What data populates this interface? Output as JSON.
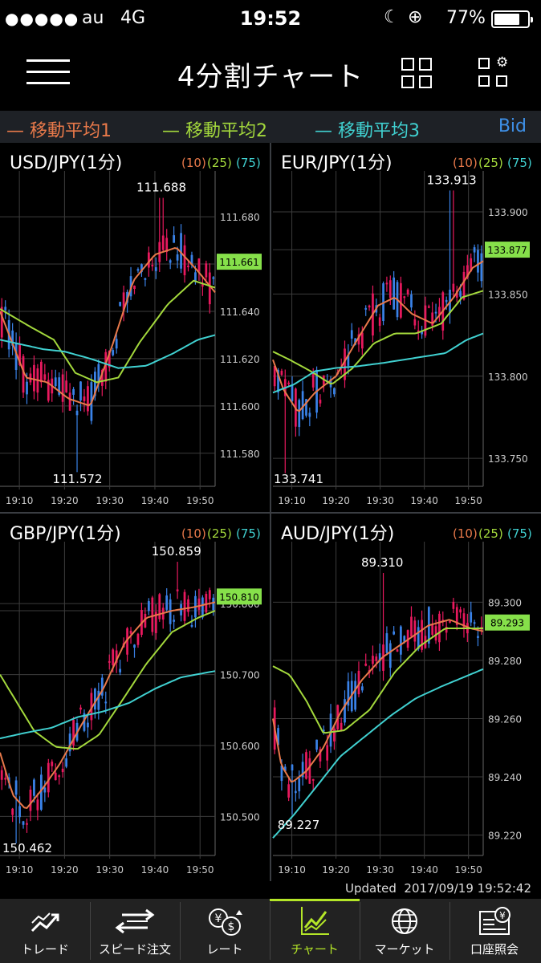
{
  "status": {
    "signal": "●●●●●",
    "carrier": "au",
    "network": "4G",
    "time": "19:52",
    "battery_text": "77%",
    "battery_level": 0.77
  },
  "header": {
    "title": "4分割チャート"
  },
  "legend": {
    "ma1": "移動平均1",
    "ma2": "移動平均2",
    "ma3": "移動平均3",
    "price_type": "Bid"
  },
  "colors": {
    "ma1": "#e8794a",
    "ma2": "#a3d83c",
    "ma3": "#40d0d0",
    "candle_up": "#e8195e",
    "candle_down": "#3a82e8",
    "price_tag": "#86e04a",
    "accent": "#b4e628",
    "bid": "#3e8fe6"
  },
  "chart_data": [
    {
      "type": "candlestick",
      "title": "USD/JPY(1分)",
      "ma_periods": [
        "(10)",
        "(25)",
        "(75)"
      ],
      "x_ticks": [
        "19:10",
        "19:20",
        "19:30",
        "19:40",
        "19:50"
      ],
      "y_ticks": [
        "111.580",
        "111.600",
        "111.620",
        "111.640",
        "111.680"
      ],
      "ylim": [
        111.566,
        111.696
      ],
      "high_label": "111.688",
      "low_label": "111.572",
      "last_price": "111.661",
      "last_value": 111.661,
      "high": 111.688,
      "low": 111.572,
      "high_at": 0.75,
      "low_at": 0.36,
      "extra_grid": [
        111.66
      ],
      "ma1": [
        [
          0,
          111.64
        ],
        [
          0.12,
          111.612
        ],
        [
          0.22,
          111.61
        ],
        [
          0.32,
          111.603
        ],
        [
          0.42,
          111.6
        ],
        [
          0.52,
          111.625
        ],
        [
          0.62,
          111.653
        ],
        [
          0.72,
          111.664
        ],
        [
          0.82,
          111.667
        ],
        [
          0.92,
          111.657
        ],
        [
          1,
          111.648
        ]
      ],
      "ma2": [
        [
          0,
          111.641
        ],
        [
          0.15,
          111.633
        ],
        [
          0.25,
          111.628
        ],
        [
          0.35,
          111.614
        ],
        [
          0.45,
          111.61
        ],
        [
          0.55,
          111.612
        ],
        [
          0.65,
          111.627
        ],
        [
          0.78,
          111.643
        ],
        [
          0.9,
          111.653
        ],
        [
          1,
          111.65
        ]
      ],
      "ma3": [
        [
          0,
          111.628
        ],
        [
          0.2,
          111.624
        ],
        [
          0.3,
          111.623
        ],
        [
          0.42,
          111.62
        ],
        [
          0.55,
          111.616
        ],
        [
          0.68,
          111.617
        ],
        [
          0.8,
          111.622
        ],
        [
          0.92,
          111.628
        ],
        [
          1,
          111.63
        ]
      ]
    },
    {
      "type": "candlestick",
      "title": "EUR/JPY(1分)",
      "ma_periods": [
        "(10)",
        "(25)",
        "(75)"
      ],
      "x_ticks": [
        "19:10",
        "19:20",
        "19:30",
        "19:40",
        "19:50"
      ],
      "y_ticks": [
        "133.750",
        "133.800",
        "133.850",
        "133.900"
      ],
      "ylim": [
        133.733,
        133.92
      ],
      "high_label": "133.913",
      "low_label": "133.741",
      "last_price": "133.877",
      "last_value": 133.877,
      "high": 133.913,
      "low": 133.741,
      "high_at": 0.85,
      "low_at": 0.06,
      "extra_grid": [
        133.877
      ],
      "ma1": [
        [
          0,
          133.81
        ],
        [
          0.05,
          133.792
        ],
        [
          0.12,
          133.778
        ],
        [
          0.2,
          133.79
        ],
        [
          0.3,
          133.8
        ],
        [
          0.4,
          133.822
        ],
        [
          0.5,
          133.843
        ],
        [
          0.58,
          133.848
        ],
        [
          0.66,
          133.838
        ],
        [
          0.76,
          133.832
        ],
        [
          0.86,
          133.848
        ],
        [
          0.95,
          133.866
        ],
        [
          1,
          133.87
        ]
      ],
      "ma2": [
        [
          0,
          133.815
        ],
        [
          0.08,
          133.81
        ],
        [
          0.18,
          133.803
        ],
        [
          0.28,
          133.795
        ],
        [
          0.38,
          133.805
        ],
        [
          0.48,
          133.82
        ],
        [
          0.58,
          133.826
        ],
        [
          0.68,
          133.826
        ],
        [
          0.8,
          133.832
        ],
        [
          0.9,
          133.848
        ],
        [
          1,
          133.852
        ]
      ],
      "ma3": [
        [
          0,
          133.79
        ],
        [
          0.1,
          133.795
        ],
        [
          0.2,
          133.803
        ],
        [
          0.3,
          133.805
        ],
        [
          0.4,
          133.806
        ],
        [
          0.52,
          133.808
        ],
        [
          0.62,
          133.81
        ],
        [
          0.72,
          133.812
        ],
        [
          0.82,
          133.814
        ],
        [
          0.92,
          133.822
        ],
        [
          1,
          133.826
        ]
      ]
    },
    {
      "type": "candlestick",
      "title": "GBP/JPY(1分)",
      "ma_periods": [
        "(10)",
        "(25)",
        "(75)"
      ],
      "x_ticks": [
        "19:10",
        "19:20",
        "19:30",
        "19:40",
        "19:50"
      ],
      "y_ticks": [
        "150.500",
        "150.600",
        "150.700",
        "150.800"
      ],
      "ylim": [
        150.445,
        150.876
      ],
      "high_label": "150.859",
      "low_label": "150.462",
      "last_price": "150.810",
      "last_value": 150.81,
      "high": 150.859,
      "low": 150.462,
      "high_at": 0.82,
      "low_at": 0.07,
      "extra_grid": [
        150.79
      ],
      "ma1": [
        [
          0,
          150.59
        ],
        [
          0.06,
          150.53
        ],
        [
          0.12,
          150.51
        ],
        [
          0.2,
          150.54
        ],
        [
          0.28,
          150.575
        ],
        [
          0.38,
          150.63
        ],
        [
          0.48,
          150.68
        ],
        [
          0.58,
          150.745
        ],
        [
          0.68,
          150.78
        ],
        [
          0.8,
          150.79
        ],
        [
          0.9,
          150.795
        ],
        [
          1,
          150.802
        ]
      ],
      "ma2": [
        [
          0,
          150.7
        ],
        [
          0.08,
          150.66
        ],
        [
          0.16,
          150.62
        ],
        [
          0.26,
          150.598
        ],
        [
          0.36,
          150.595
        ],
        [
          0.46,
          150.615
        ],
        [
          0.56,
          150.66
        ],
        [
          0.68,
          150.715
        ],
        [
          0.8,
          150.76
        ],
        [
          0.92,
          150.78
        ],
        [
          1,
          150.79
        ]
      ],
      "ma3": [
        [
          0,
          150.61
        ],
        [
          0.12,
          150.618
        ],
        [
          0.24,
          150.625
        ],
        [
          0.36,
          150.64
        ],
        [
          0.48,
          150.648
        ],
        [
          0.6,
          150.66
        ],
        [
          0.72,
          150.68
        ],
        [
          0.84,
          150.696
        ],
        [
          1,
          150.705
        ]
      ]
    },
    {
      "type": "candlestick",
      "title": "AUD/JPY(1分)",
      "ma_periods": [
        "(10)",
        "(25)",
        "(75)"
      ],
      "x_ticks": [
        "19:10",
        "19:20",
        "19:30",
        "19:40",
        "19:50"
      ],
      "y_ticks": [
        "89.220",
        "89.240",
        "89.260",
        "89.280",
        "89.300"
      ],
      "ylim": [
        89.213,
        89.318
      ],
      "high_label": "89.310",
      "low_label": "89.227",
      "last_price": "89.293",
      "last_value": 89.293,
      "high": 89.31,
      "low": 89.227,
      "high_at": 0.52,
      "low_at": 0.09,
      "extra_grid": [],
      "ma1": [
        [
          0,
          89.26
        ],
        [
          0.04,
          89.244
        ],
        [
          0.09,
          89.238
        ],
        [
          0.16,
          89.242
        ],
        [
          0.24,
          89.25
        ],
        [
          0.32,
          89.262
        ],
        [
          0.42,
          89.273
        ],
        [
          0.52,
          89.281
        ],
        [
          0.62,
          89.286
        ],
        [
          0.74,
          89.292
        ],
        [
          0.84,
          89.294
        ],
        [
          0.94,
          89.291
        ],
        [
          1,
          89.29
        ]
      ],
      "ma2": [
        [
          0,
          89.278
        ],
        [
          0.08,
          89.275
        ],
        [
          0.16,
          89.266
        ],
        [
          0.24,
          89.255
        ],
        [
          0.34,
          89.256
        ],
        [
          0.46,
          89.263
        ],
        [
          0.58,
          89.276
        ],
        [
          0.7,
          89.285
        ],
        [
          0.82,
          89.291
        ],
        [
          0.92,
          89.291
        ],
        [
          1,
          89.291
        ]
      ],
      "ma3": [
        [
          0,
          89.219
        ],
        [
          0.1,
          89.227
        ],
        [
          0.2,
          89.236
        ],
        [
          0.32,
          89.247
        ],
        [
          0.44,
          89.254
        ],
        [
          0.56,
          89.261
        ],
        [
          0.68,
          89.267
        ],
        [
          0.8,
          89.271
        ],
        [
          0.9,
          89.274
        ],
        [
          1,
          89.277
        ]
      ]
    }
  ],
  "updated": {
    "label": "Updated",
    "datetime": "2017/09/19 19:52:42"
  },
  "tabs": [
    {
      "label": "トレード",
      "icon": "trade-icon"
    },
    {
      "label": "スピード注文",
      "icon": "speed-order-icon"
    },
    {
      "label": "レート",
      "icon": "rate-icon"
    },
    {
      "label": "チャート",
      "icon": "chart-icon",
      "active": true
    },
    {
      "label": "マーケット",
      "icon": "market-icon"
    },
    {
      "label": "口座照会",
      "icon": "account-icon"
    }
  ]
}
